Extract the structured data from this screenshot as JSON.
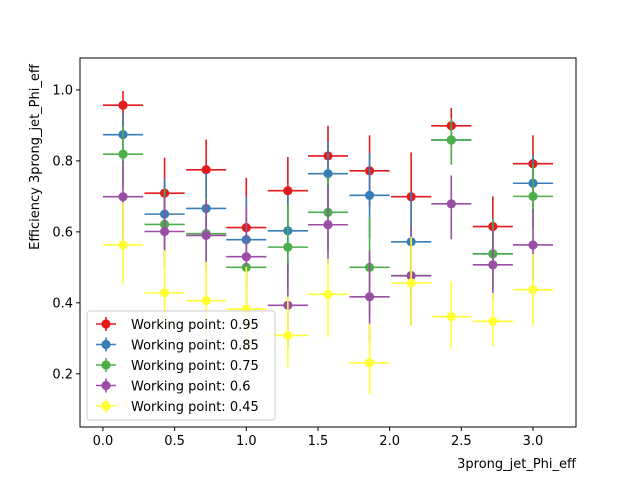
{
  "chart_data": {
    "type": "scatter",
    "xlabel": "3prong_jet_Phi_eff",
    "ylabel": "Efficiency 3prong_jet_Phi_eff",
    "xlim": [
      -0.16,
      3.3
    ],
    "ylim": [
      0.05,
      1.09
    ],
    "x_ticks": [
      0.0,
      0.5,
      1.0,
      1.5,
      2.0,
      2.5,
      3.0
    ],
    "y_ticks": [
      0.2,
      0.4,
      0.6,
      0.8,
      1.0
    ],
    "x_tick_labels": [
      "0.0",
      "0.5",
      "1.0",
      "1.5",
      "2.0",
      "2.5",
      "3.0"
    ],
    "y_tick_labels": [
      "0.2",
      "0.4",
      "0.6",
      "0.8",
      "1.0"
    ],
    "x_bin_half_width": 0.14,
    "legend_position": "lower-left",
    "grid": false,
    "x": [
      0.14,
      0.43,
      0.72,
      1.0,
      1.29,
      1.57,
      1.86,
      2.15,
      2.43,
      2.72,
      3.0
    ],
    "series": [
      {
        "name": "Working point: 0.95",
        "color": "#e41a1c",
        "values": [
          0.957,
          0.709,
          0.775,
          0.612,
          0.716,
          0.814,
          0.772,
          0.699,
          0.899,
          0.615,
          0.792
        ],
        "yerr_low": [
          0.06,
          0.09,
          0.08,
          0.13,
          0.1,
          0.09,
          0.1,
          0.13,
          0.05,
          0.11,
          0.08
        ],
        "yerr_high": [
          0.04,
          0.1,
          0.085,
          0.14,
          0.095,
          0.085,
          0.1,
          0.125,
          0.05,
          0.085,
          0.08
        ]
      },
      {
        "name": "Working point: 0.85",
        "color": "#377eb8",
        "values": [
          0.874,
          0.65,
          0.666,
          0.578,
          0.603,
          0.764,
          0.703,
          0.572,
          0.859,
          0.538,
          0.737
        ],
        "yerr_low": [
          0.08,
          0.09,
          0.09,
          0.13,
          0.12,
          0.1,
          0.12,
          0.15,
          0.06,
          0.1,
          0.08
        ],
        "yerr_high": [
          0.06,
          0.1,
          0.1,
          0.12,
          0.1,
          0.09,
          0.12,
          0.14,
          0.06,
          0.1,
          0.08
        ]
      },
      {
        "name": "Working point: 0.75",
        "color": "#4daf4a",
        "values": [
          0.819,
          0.621,
          0.595,
          0.5,
          0.557,
          0.655,
          0.5,
          0.477,
          0.859,
          0.538,
          0.7
        ],
        "yerr_low": [
          0.09,
          0.09,
          0.09,
          0.13,
          0.12,
          0.11,
          0.14,
          0.14,
          0.07,
          0.1,
          0.09
        ],
        "yerr_high": [
          0.08,
          0.1,
          0.1,
          0.14,
          0.12,
          0.1,
          0.14,
          0.14,
          0.06,
          0.1,
          0.09
        ]
      },
      {
        "name": "Working point: 0.6",
        "color": "#984ea3",
        "values": [
          0.699,
          0.601,
          0.59,
          0.53,
          0.393,
          0.62,
          0.417,
          0.476,
          0.679,
          0.507,
          0.563
        ],
        "yerr_low": [
          0.12,
          0.1,
          0.1,
          0.13,
          0.12,
          0.11,
          0.13,
          0.14,
          0.1,
          0.1,
          0.1
        ],
        "yerr_high": [
          0.1,
          0.1,
          0.1,
          0.14,
          0.12,
          0.11,
          0.13,
          0.14,
          0.08,
          0.1,
          0.1
        ]
      },
      {
        "name": "Working point: 0.45",
        "color": "#ffff33",
        "values": [
          0.563,
          0.428,
          0.406,
          0.382,
          0.308,
          0.424,
          0.231,
          0.456,
          0.361,
          0.348,
          0.437
        ],
        "yerr_low": [
          0.11,
          0.09,
          0.09,
          0.12,
          0.09,
          0.12,
          0.09,
          0.12,
          0.09,
          0.07,
          0.1
        ],
        "yerr_high": [
          0.12,
          0.12,
          0.11,
          0.12,
          0.11,
          0.1,
          0.11,
          0.13,
          0.1,
          0.08,
          0.1
        ]
      }
    ]
  }
}
